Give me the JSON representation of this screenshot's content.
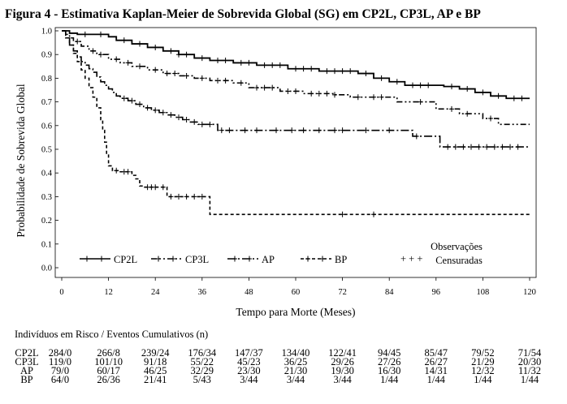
{
  "chart_data": {
    "type": "line",
    "title": "Figura 4 - Estimativa Kaplan-Meier de Sobrevida Global (SG) em CP2L, CP3L, AP e BP",
    "xlabel": "Tempo para Morte (Meses)",
    "ylabel": "Probabilidade de Sobrevida Global",
    "xlim": [
      0,
      120
    ],
    "ylim": [
      0.0,
      1.0
    ],
    "xticks": [
      0,
      12,
      24,
      36,
      48,
      60,
      72,
      84,
      96,
      108,
      120
    ],
    "yticks": [
      "0.0",
      "0.1",
      "0.2",
      "0.3",
      "0.4",
      "0.5",
      "0.6",
      "0.7",
      "0.8",
      "0.9",
      "1.0"
    ],
    "legend_position": "bottom-inside",
    "censor_legend": [
      "Observações",
      "Censuradas"
    ],
    "censor_marker": "+ + +",
    "series": [
      {
        "name": "CP2L",
        "style": "solid",
        "steps": [
          [
            0,
            1.0
          ],
          [
            2,
            0.99
          ],
          [
            4,
            0.985
          ],
          [
            12,
            0.975
          ],
          [
            14,
            0.96
          ],
          [
            18,
            0.945
          ],
          [
            22,
            0.93
          ],
          [
            26,
            0.915
          ],
          [
            30,
            0.9
          ],
          [
            34,
            0.885
          ],
          [
            38,
            0.875
          ],
          [
            44,
            0.865
          ],
          [
            50,
            0.855
          ],
          [
            58,
            0.84
          ],
          [
            66,
            0.83
          ],
          [
            76,
            0.82
          ],
          [
            80,
            0.8
          ],
          [
            84,
            0.785
          ],
          [
            88,
            0.77
          ],
          [
            98,
            0.765
          ],
          [
            102,
            0.755
          ],
          [
            106,
            0.74
          ],
          [
            110,
            0.725
          ],
          [
            114,
            0.715
          ],
          [
            120,
            0.715
          ]
        ],
        "censored": [
          6,
          10,
          16,
          20,
          24,
          28,
          30,
          32,
          36,
          40,
          42,
          46,
          48,
          52,
          54,
          56,
          60,
          62,
          64,
          68,
          70,
          72,
          74,
          78,
          82,
          86,
          90,
          92,
          94,
          100,
          104,
          108,
          112,
          116,
          118
        ]
      },
      {
        "name": "CP3L",
        "style": "dash-dot-dot",
        "steps": [
          [
            0,
            1.0
          ],
          [
            1,
            0.985
          ],
          [
            2,
            0.97
          ],
          [
            3,
            0.955
          ],
          [
            5,
            0.935
          ],
          [
            7,
            0.915
          ],
          [
            9,
            0.9
          ],
          [
            12,
            0.88
          ],
          [
            15,
            0.865
          ],
          [
            18,
            0.85
          ],
          [
            22,
            0.835
          ],
          [
            26,
            0.82
          ],
          [
            30,
            0.81
          ],
          [
            34,
            0.8
          ],
          [
            38,
            0.79
          ],
          [
            44,
            0.78
          ],
          [
            48,
            0.76
          ],
          [
            56,
            0.745
          ],
          [
            62,
            0.735
          ],
          [
            70,
            0.73
          ],
          [
            74,
            0.72
          ],
          [
            78,
            0.72
          ],
          [
            86,
            0.7
          ],
          [
            96,
            0.67
          ],
          [
            102,
            0.65
          ],
          [
            108,
            0.63
          ],
          [
            112,
            0.605
          ],
          [
            120,
            0.605
          ]
        ],
        "censored": [
          4,
          8,
          10,
          14,
          17,
          20,
          24,
          27,
          29,
          32,
          36,
          40,
          42,
          46,
          50,
          52,
          54,
          58,
          60,
          64,
          66,
          68,
          70,
          76,
          80,
          82,
          92,
          100,
          104,
          110
        ]
      },
      {
        "name": "AP",
        "style": "dash-dot",
        "steps": [
          [
            0,
            1.0
          ],
          [
            1,
            0.97
          ],
          [
            2,
            0.94
          ],
          [
            3,
            0.915
          ],
          [
            4,
            0.89
          ],
          [
            5,
            0.87
          ],
          [
            6,
            0.855
          ],
          [
            7,
            0.84
          ],
          [
            8,
            0.825
          ],
          [
            9,
            0.805
          ],
          [
            10,
            0.785
          ],
          [
            11,
            0.77
          ],
          [
            12,
            0.755
          ],
          [
            13,
            0.74
          ],
          [
            14,
            0.725
          ],
          [
            15,
            0.715
          ],
          [
            17,
            0.705
          ],
          [
            19,
            0.69
          ],
          [
            21,
            0.675
          ],
          [
            23,
            0.665
          ],
          [
            25,
            0.655
          ],
          [
            27,
            0.645
          ],
          [
            29,
            0.635
          ],
          [
            31,
            0.625
          ],
          [
            33,
            0.615
          ],
          [
            35,
            0.605
          ],
          [
            40,
            0.58
          ],
          [
            90,
            0.555
          ],
          [
            97,
            0.51
          ],
          [
            120,
            0.51
          ]
        ],
        "censored": [
          16,
          18,
          20,
          22,
          24,
          26,
          28,
          30,
          32,
          34,
          36,
          38,
          41,
          43,
          47,
          50,
          55,
          59,
          62,
          66,
          70,
          72,
          78,
          84,
          91,
          99,
          101,
          103,
          105,
          107,
          109,
          111,
          113,
          115,
          117
        ]
      },
      {
        "name": "BP",
        "style": "dashed",
        "steps": [
          [
            0,
            1.0
          ],
          [
            1,
            0.97
          ],
          [
            2,
            0.94
          ],
          [
            3,
            0.905
          ],
          [
            4,
            0.87
          ],
          [
            5,
            0.835
          ],
          [
            6,
            0.8
          ],
          [
            7,
            0.76
          ],
          [
            8,
            0.72
          ],
          [
            9,
            0.675
          ],
          [
            10,
            0.625
          ],
          [
            10.5,
            0.58
          ],
          [
            11,
            0.53
          ],
          [
            11.5,
            0.48
          ],
          [
            12,
            0.43
          ],
          [
            13,
            0.41
          ],
          [
            15,
            0.405
          ],
          [
            18,
            0.39
          ],
          [
            19,
            0.375
          ],
          [
            20,
            0.345
          ],
          [
            21,
            0.34
          ],
          [
            27,
            0.3
          ],
          [
            38,
            0.225
          ],
          [
            120,
            0.225
          ]
        ],
        "censored": [
          14,
          16,
          17,
          22,
          23,
          24,
          26,
          28,
          30,
          32,
          34,
          36,
          72,
          80
        ]
      }
    ],
    "risk_table": {
      "heading": "Indivíduos em Risco / Eventos Cumulativos (n)",
      "rows": [
        {
          "label": "CP2L",
          "values": [
            "284/0",
            "266/8",
            "239/24",
            "176/34",
            "147/37",
            "134/40",
            "122/41",
            "94/45",
            "85/47",
            "79/52",
            "71/54"
          ]
        },
        {
          "label": "CP3L",
          "values": [
            "119/0",
            "101/10",
            "91/18",
            "55/22",
            "45/23",
            "36/25",
            "29/26",
            "27/26",
            "26/27",
            "21/29",
            "20/30"
          ]
        },
        {
          "label": "AP",
          "values": [
            "79/0",
            "60/17",
            "46/25",
            "32/29",
            "23/30",
            "21/30",
            "19/30",
            "16/30",
            "14/31",
            "12/32",
            "11/32"
          ]
        },
        {
          "label": "BP",
          "values": [
            "64/0",
            "26/36",
            "21/41",
            "5/43",
            "3/44",
            "3/44",
            "3/44",
            "1/44",
            "1/44",
            "1/44",
            "1/44"
          ]
        }
      ]
    }
  }
}
